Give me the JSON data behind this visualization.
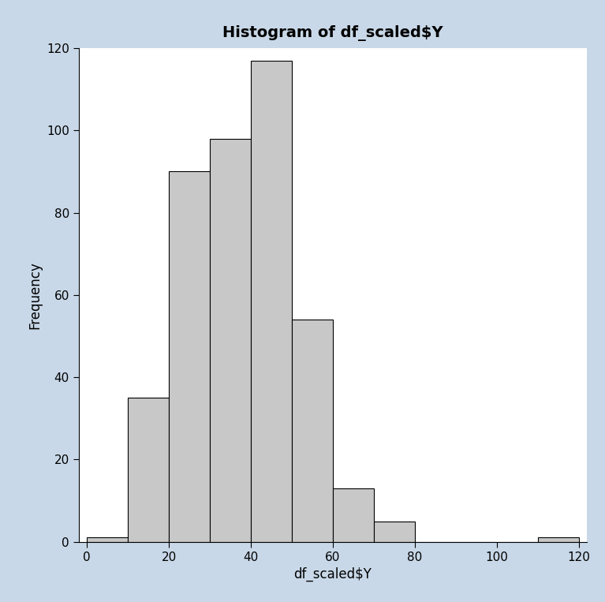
{
  "title": "Histogram of df_scaled$Y",
  "xlabel": "df_scaled$Y",
  "ylabel": "Frequency",
  "bar_color": "#c8c8c8",
  "bar_edge_color": "#000000",
  "bar_edge_width": 0.8,
  "bin_edges": [
    0,
    10,
    20,
    30,
    40,
    50,
    60,
    70,
    80,
    90,
    100,
    110,
    120
  ],
  "frequencies": [
    1,
    35,
    90,
    98,
    117,
    54,
    13,
    5,
    0,
    0,
    0,
    1
  ],
  "xlim": [
    -2,
    122
  ],
  "ylim": [
    0,
    120
  ],
  "xticks": [
    0,
    20,
    40,
    60,
    80,
    100,
    120
  ],
  "yticks": [
    0,
    20,
    40,
    60,
    80,
    100,
    120
  ],
  "title_fontsize": 14,
  "label_fontsize": 12,
  "tick_fontsize": 11,
  "figure_bg_color": "#c8d8e8",
  "axes_bg_color": "#ffffff"
}
